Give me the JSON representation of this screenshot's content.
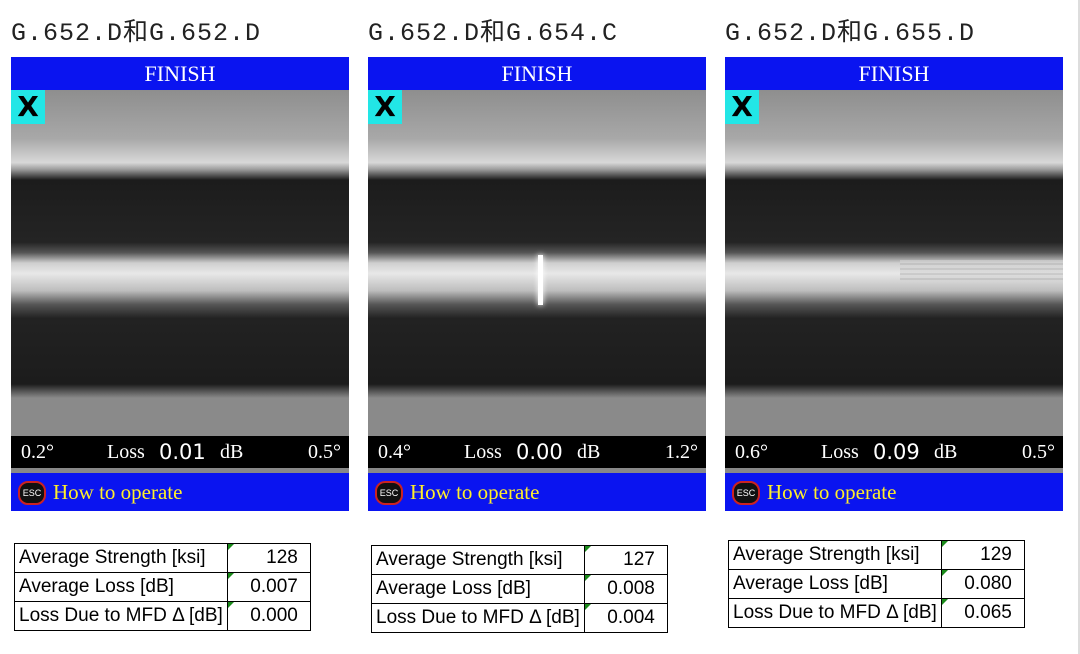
{
  "panels": [
    {
      "title": "G.652.D和G.652.D",
      "screen": {
        "status": "FINISH",
        "mark": "X",
        "left_angle": "0.2°",
        "loss_label": "Loss",
        "loss_value": "0.01",
        "loss_unit": "dB",
        "right_angle": "0.5°",
        "esc": "ESC",
        "help": "How to operate"
      },
      "table": [
        [
          "Average Strength [ksi]",
          "128"
        ],
        [
          "Average Loss [dB]",
          "0.007"
        ],
        [
          "Loss Due to MFD Δ [dB]",
          "0.000"
        ]
      ]
    },
    {
      "title": "G.652.D和G.654.C",
      "screen": {
        "status": "FINISH",
        "mark": "X",
        "left_angle": "0.4°",
        "loss_label": "Loss",
        "loss_value": "0.00",
        "loss_unit": "dB",
        "right_angle": "1.2°",
        "esc": "ESC",
        "help": "How to operate"
      },
      "table": [
        [
          "Average Strength [ksi]",
          "127"
        ],
        [
          "Average Loss [dB]",
          "0.008"
        ],
        [
          "Loss Due to MFD Δ [dB]",
          "0.004"
        ]
      ]
    },
    {
      "title": "G.652.D和G.655.D",
      "screen": {
        "status": "FINISH",
        "mark": "X",
        "left_angle": "0.6°",
        "loss_label": "Loss",
        "loss_value": "0.09",
        "loss_unit": "dB",
        "right_angle": "0.5°",
        "esc": "ESC",
        "help": "How to operate"
      },
      "table": [
        [
          "Average Strength [ksi]",
          "129"
        ],
        [
          "Average Loss [dB]",
          "0.080"
        ],
        [
          "Loss Due to MFD Δ [dB]",
          "0.065"
        ]
      ]
    }
  ]
}
